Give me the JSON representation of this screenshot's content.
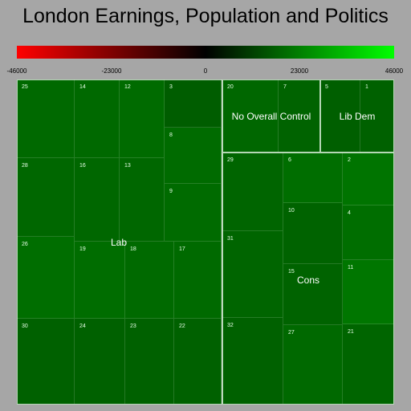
{
  "chart_data": {
    "type": "treemap",
    "title": "London Earnings, Population and Politics",
    "color_scale": {
      "min": -46000,
      "max": 46000,
      "ticks": [
        "-46000",
        "-23000",
        "0",
        "23000",
        "46000"
      ],
      "colors": [
        "#ff0000",
        "#000000",
        "#00ff00"
      ]
    },
    "groups": [
      {
        "name": "Lab",
        "cells": [
          {
            "label": "25",
            "value": 6500
          },
          {
            "label": "14",
            "value": 6500
          },
          {
            "label": "12",
            "value": 7000
          },
          {
            "label": "3",
            "value": 3500
          },
          {
            "label": "8",
            "value": 7000
          },
          {
            "label": "28",
            "value": 6000
          },
          {
            "label": "16",
            "value": 6000
          },
          {
            "label": "13",
            "value": 6000
          },
          {
            "label": "9",
            "value": 7000
          },
          {
            "label": "26",
            "value": 8000
          },
          {
            "label": "19",
            "value": 7500
          },
          {
            "label": "18",
            "value": 6800
          },
          {
            "label": "17",
            "value": 6800
          },
          {
            "label": "30",
            "value": 4500
          },
          {
            "label": "24",
            "value": 4500
          },
          {
            "label": "23",
            "value": 4500
          },
          {
            "label": "22",
            "value": 4500
          }
        ]
      },
      {
        "name": "No Overall Control",
        "cells": [
          {
            "label": "20",
            "value": 6000
          },
          {
            "label": "7",
            "value": 5000
          }
        ]
      },
      {
        "name": "Lib Dem",
        "cells": [
          {
            "label": "5",
            "value": 4000
          },
          {
            "label": "1",
            "value": 4500
          }
        ]
      },
      {
        "name": "Cons",
        "cells": [
          {
            "label": "29",
            "value": 5500
          },
          {
            "label": "6",
            "value": 8000
          },
          {
            "label": "2",
            "value": 9500
          },
          {
            "label": "31",
            "value": 5500
          },
          {
            "label": "10",
            "value": 5000
          },
          {
            "label": "4",
            "value": 8000
          },
          {
            "label": "15",
            "value": 5000
          },
          {
            "label": "11",
            "value": 10000
          },
          {
            "label": "32",
            "value": 4500
          },
          {
            "label": "27",
            "value": 6500
          },
          {
            "label": "21",
            "value": 5500
          }
        ]
      }
    ]
  }
}
